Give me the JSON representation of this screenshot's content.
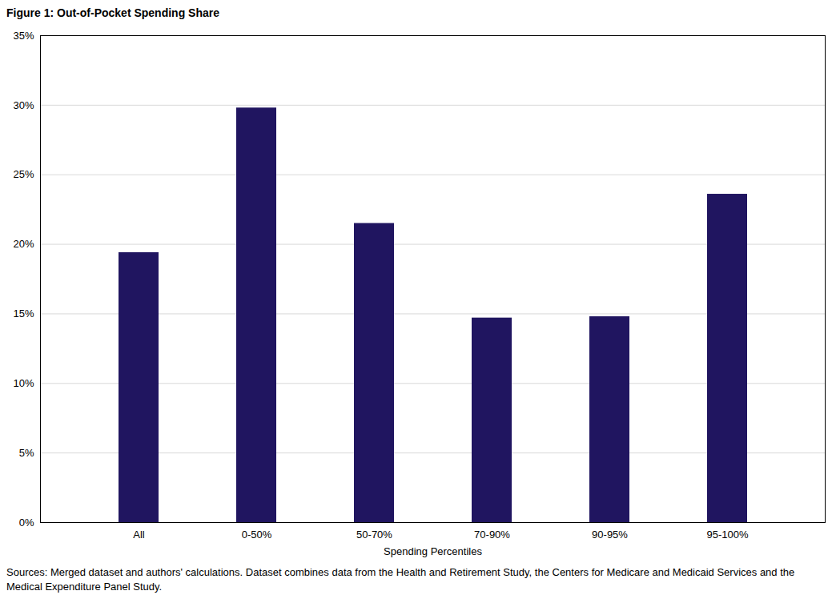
{
  "chart_data": {
    "type": "bar",
    "title": "Figure 1: Out-of-Pocket Spending Share",
    "xlabel": "Spending Percentiles",
    "caption": "Sources: Merged dataset and authors' calculations. Dataset combines data from the Health and Retirement Study, the Centers for Medicare and Medicaid Services and the Medical Expenditure Panel Study.",
    "categories": [
      "All",
      "0-50%",
      "50-70%",
      "70-90%",
      "90-95%",
      "95-100%"
    ],
    "values": [
      19.4,
      29.8,
      21.5,
      14.7,
      14.8,
      23.6
    ],
    "color": "#201560",
    "ylim": [
      0,
      35
    ],
    "yticks": [
      {
        "value": 0,
        "label": "0%"
      },
      {
        "value": 5,
        "label": "5%"
      },
      {
        "value": 10,
        "label": "10%"
      },
      {
        "value": 15,
        "label": "15%"
      },
      {
        "value": 20,
        "label": "20%"
      },
      {
        "value": 25,
        "label": "25%"
      },
      {
        "value": 30,
        "label": "30%"
      },
      {
        "value": 35,
        "label": "35%"
      }
    ],
    "grid": true
  }
}
